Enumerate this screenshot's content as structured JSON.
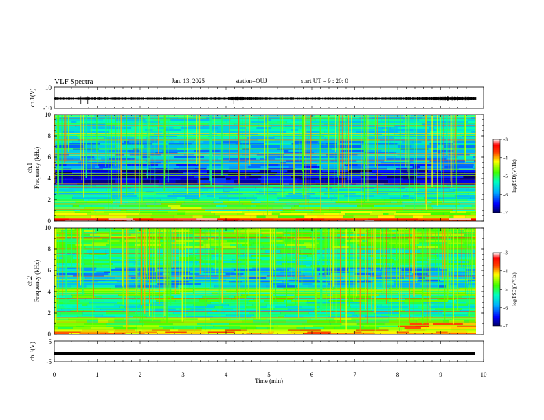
{
  "header": {
    "title": "VLF Spectra",
    "date": "Jan. 13, 2025",
    "station": "station=OUJ",
    "start": "start UT =  9 : 20: 0"
  },
  "chart_data": [
    {
      "type": "line",
      "panel": "waveform-ch1",
      "ylabel": "ch.1(V)",
      "ylim": [
        -10,
        10
      ],
      "yticks": [
        "10",
        "-10"
      ],
      "xlim": [
        0,
        10
      ],
      "description_series": [
        {
          "x": [
            0,
            0.5,
            1,
            2,
            3,
            4,
            4.2,
            5,
            6,
            7,
            8,
            9,
            9.2,
            9.8
          ],
          "amplitude": [
            1.2,
            1.0,
            1.3,
            1.0,
            1.1,
            1.2,
            2.5,
            1.0,
            1.1,
            1.0,
            1.2,
            2.2,
            2.8,
            2.0
          ]
        }
      ]
    },
    {
      "type": "heatmap",
      "panel": "spectrogram-ch1",
      "ylabel": "Frequency (kHz)",
      "ylabel2": "ch.1",
      "ylim": [
        0,
        10
      ],
      "yticks": [
        "0",
        "2",
        "4",
        "6",
        "8",
        "10"
      ],
      "xlim": [
        0,
        9.8
      ],
      "colorbar": {
        "label": "log(PSD)(V²/Hz)",
        "range": [
          -7,
          -3
        ],
        "ticks": [
          "-3",
          "-4",
          "-5",
          "-6",
          "-7"
        ]
      }
    },
    {
      "type": "heatmap",
      "panel": "spectrogram-ch2",
      "ylabel": "Frequency (kHz)",
      "ylabel2": "ch.2",
      "ylim": [
        0,
        10
      ],
      "yticks": [
        "0",
        "2",
        "4",
        "6",
        "8",
        "10"
      ],
      "xlim": [
        0,
        9.8
      ],
      "colorbar": {
        "label": "log(PSD)(V²/Hz)",
        "range": [
          -7,
          -3
        ],
        "ticks": [
          "-3",
          "-4",
          "-5",
          "-6",
          "-7"
        ]
      }
    },
    {
      "type": "line",
      "panel": "waveform-ch3",
      "ylabel": "ch.3(V)",
      "ylim": [
        -5,
        5
      ],
      "yticks": [
        "5",
        "-5"
      ],
      "xlim": [
        0,
        10
      ],
      "series": [
        {
          "x": [
            0,
            9.8
          ],
          "values": [
            -1,
            -1
          ]
        }
      ]
    }
  ],
  "xaxis": {
    "label": "Time (min)",
    "ticks": [
      "0",
      "1",
      "2",
      "3",
      "4",
      "5",
      "6",
      "7",
      "8",
      "9",
      "10"
    ]
  },
  "colors": {
    "background": "#ffffff",
    "axis": "#000000",
    "trace": "#000000"
  }
}
